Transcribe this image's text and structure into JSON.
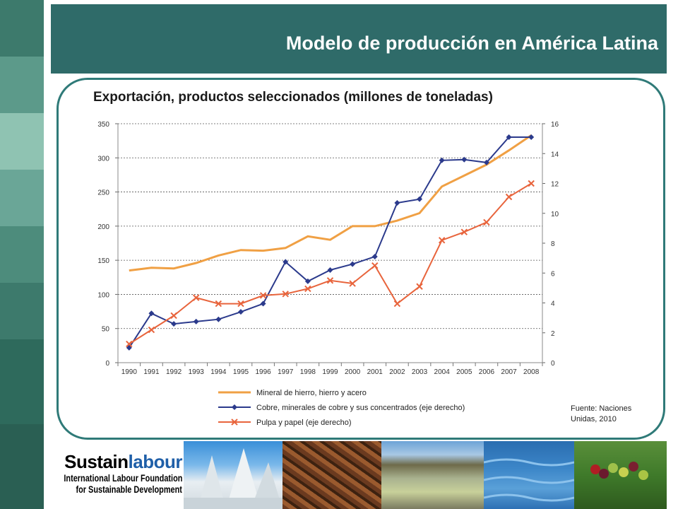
{
  "header": {
    "title": "Modelo de producción en América Latina"
  },
  "chart_title": "Exportación, productos seleccionados (millones de toneladas)",
  "source": {
    "line1": "Fuente: Naciones",
    "line2": "Unidas, 2010"
  },
  "logo": {
    "part1": "Sustain",
    "part2": "labour",
    "line2": "International Labour Foundation",
    "line3": "for Sustainable Development"
  },
  "colors": {
    "header": "#2f6b69",
    "panel_border": "#2f7a78",
    "iron": "#f0a044",
    "copper": "#2b3a8c",
    "pulp": "#e8643c"
  },
  "chart_data": {
    "type": "line",
    "x": [
      "1990",
      "1991",
      "1992",
      "1993",
      "1994",
      "1995",
      "1996",
      "1997",
      "1998",
      "1999",
      "2000",
      "2001",
      "2002",
      "2003",
      "2004",
      "2005",
      "2006",
      "2007",
      "2008"
    ],
    "ylim_left": [
      0,
      350
    ],
    "yticks_left": [
      0,
      50,
      100,
      150,
      200,
      250,
      300,
      350
    ],
    "ylim_right": [
      0,
      16
    ],
    "yticks_right": [
      0,
      2,
      4,
      6,
      8,
      10,
      12,
      14,
      16
    ],
    "grid": "horizontal dashed",
    "legend_position": "bottom",
    "series": [
      {
        "name": "Mineral de hierro, hierro y acero",
        "axis": "left",
        "color": "#f0a044",
        "marker": "none",
        "values": [
          135,
          139,
          138,
          146,
          157,
          165,
          164,
          168,
          185,
          180,
          200,
          200,
          208,
          219,
          258,
          274,
          290,
          311,
          333
        ]
      },
      {
        "name": "Cobre, minerales de cobre y sus concentrados (eje derecho)",
        "axis": "right",
        "color": "#2b3a8c",
        "marker": "diamond",
        "values": [
          1.0,
          3.3,
          2.6,
          2.75,
          2.9,
          3.4,
          3.95,
          6.75,
          5.45,
          6.2,
          6.6,
          7.1,
          10.7,
          10.95,
          13.55,
          13.6,
          13.4,
          15.1,
          15.1
        ]
      },
      {
        "name": "Pulpa y papel (eje derecho)",
        "axis": "right",
        "color": "#e8643c",
        "marker": "x",
        "values": [
          1.25,
          2.2,
          3.15,
          4.35,
          3.95,
          3.95,
          4.5,
          4.6,
          4.95,
          5.5,
          5.3,
          6.5,
          3.95,
          5.1,
          8.2,
          8.75,
          9.4,
          11.1,
          12.0
        ]
      }
    ]
  }
}
